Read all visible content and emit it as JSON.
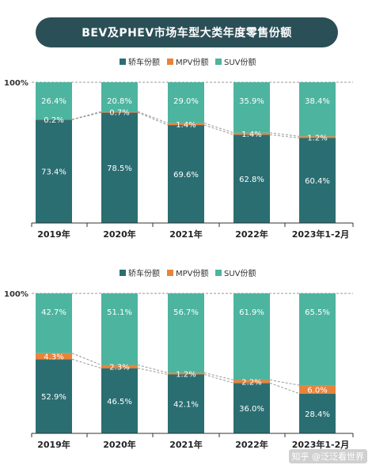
{
  "title": "BEV及PHEV市场车型大类年度零售份额",
  "footer_text": "知乎 @泛泛看世界",
  "colors": {
    "sedan": "#2a6e72",
    "mpv": "#e8843a",
    "suv": "#4db49f",
    "axis": "#333333",
    "dash": "#999999"
  },
  "chart_data": [
    {
      "type": "bar",
      "stacked": true,
      "percent": true,
      "y_top_label": "100%",
      "categories": [
        "2019年",
        "2020年",
        "2021年",
        "2022年",
        "2023年1-2月"
      ],
      "series": [
        {
          "name": "轿车份额",
          "values": [
            73.4,
            78.5,
            69.6,
            62.8,
            60.4
          ],
          "labels": [
            "73.4%",
            "78.5%",
            "69.6%",
            "62.8%",
            "60.4%"
          ]
        },
        {
          "name": "MPV份额",
          "values": [
            0.2,
            0.7,
            1.4,
            1.4,
            1.2
          ],
          "labels": [
            "0.2%",
            "0.7%",
            "1.4%",
            "1.4%",
            "1.2%"
          ]
        },
        {
          "name": "SUV份额",
          "values": [
            26.4,
            20.8,
            29.0,
            35.9,
            38.4
          ],
          "labels": [
            "26.4%",
            "20.8%",
            "29.0%",
            "35.9%",
            "38.4%"
          ]
        }
      ],
      "legend_position": "top"
    },
    {
      "type": "bar",
      "stacked": true,
      "percent": true,
      "y_top_label": "100%",
      "categories": [
        "2019年",
        "2020年",
        "2021年",
        "2022年",
        "2023年1-2月"
      ],
      "series": [
        {
          "name": "轿车份额",
          "values": [
            52.9,
            46.5,
            42.1,
            36.0,
            28.4
          ],
          "labels": [
            "52.9%",
            "46.5%",
            "42.1%",
            "36.0%",
            "28.4%"
          ]
        },
        {
          "name": "MPV份额",
          "values": [
            4.3,
            2.3,
            1.2,
            2.2,
            6.0
          ],
          "labels": [
            "4.3%",
            "2.3%",
            "1.2%",
            "2.2%",
            "6.0%"
          ]
        },
        {
          "name": "SUV份额",
          "values": [
            42.7,
            51.1,
            56.7,
            61.9,
            65.5
          ],
          "labels": [
            "42.7%",
            "51.1%",
            "56.7%",
            "61.9%",
            "65.5%"
          ]
        }
      ],
      "legend_position": "top"
    }
  ]
}
